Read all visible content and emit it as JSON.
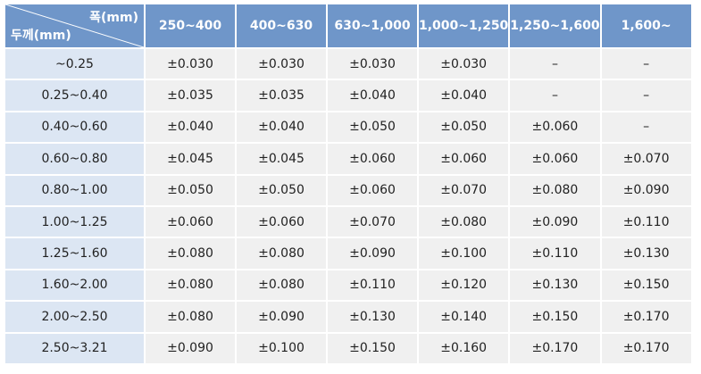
{
  "table": {
    "corner": {
      "width_label": "폭(mm)",
      "thickness_label": "두께(mm)"
    },
    "columns": [
      "250~400",
      "400~630",
      "630~1,000",
      "1,000~1,250",
      "1,250~1,600",
      "1,600~"
    ],
    "rows": [
      {
        "thickness": "~0.25",
        "values": [
          "±0.030",
          "±0.030",
          "±0.030",
          "±0.030",
          "–",
          "–"
        ]
      },
      {
        "thickness": "0.25~0.40",
        "values": [
          "±0.035",
          "±0.035",
          "±0.040",
          "±0.040",
          "–",
          "–"
        ]
      },
      {
        "thickness": "0.40~0.60",
        "values": [
          "±0.040",
          "±0.040",
          "±0.050",
          "±0.050",
          "±0.060",
          "–"
        ]
      },
      {
        "thickness": "0.60~0.80",
        "values": [
          "±0.045",
          "±0.045",
          "±0.060",
          "±0.060",
          "±0.060",
          "±0.070"
        ]
      },
      {
        "thickness": "0.80~1.00",
        "values": [
          "±0.050",
          "±0.050",
          "±0.060",
          "±0.070",
          "±0.080",
          "±0.090"
        ]
      },
      {
        "thickness": "1.00~1.25",
        "values": [
          "±0.060",
          "±0.060",
          "±0.070",
          "±0.080",
          "±0.090",
          "±0.110"
        ]
      },
      {
        "thickness": "1.25~1.60",
        "values": [
          "±0.080",
          "±0.080",
          "±0.090",
          "±0.100",
          "±0.110",
          "±0.130"
        ]
      },
      {
        "thickness": "1.60~2.00",
        "values": [
          "±0.080",
          "±0.080",
          "±0.110",
          "±0.120",
          "±0.130",
          "±0.150"
        ]
      },
      {
        "thickness": "2.00~2.50",
        "values": [
          "±0.080",
          "±0.090",
          "±0.130",
          "±0.140",
          "±0.150",
          "±0.170"
        ]
      },
      {
        "thickness": "2.50~3.21",
        "values": [
          "±0.090",
          "±0.100",
          "±0.150",
          "±0.160",
          "±0.170",
          "±0.170"
        ]
      }
    ]
  },
  "colors": {
    "header_bg": "#6f96c9",
    "row_header_bg": "#dce6f3",
    "cell_bg": "#f0f0f0"
  }
}
